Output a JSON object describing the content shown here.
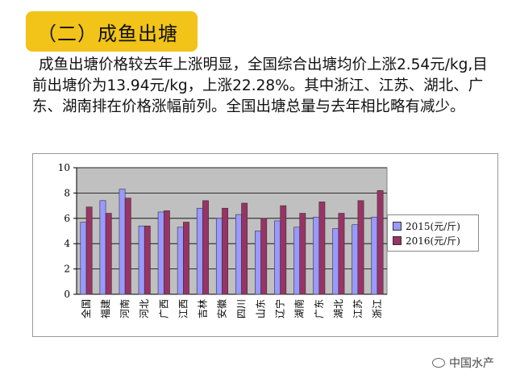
{
  "heading": "（二）成鱼出塘",
  "paragraph": "成鱼出塘价格较去年上涨明显，全国综合出塘均价上涨2.54元/kg,目前出塘价为13.94元/kg，上涨22.28%。其中浙江、江苏、湖北、广东、湖南排在价格涨幅前列。全国出塘总量与去年相比略有减少。",
  "watermark": "中国水产",
  "watermark_icon": "chat-bubble-icon",
  "chart_data": {
    "type": "bar",
    "categories": [
      "全国",
      "福建",
      "河南",
      "河北",
      "广西",
      "江西",
      "吉林",
      "安徽",
      "四川",
      "山东",
      "辽宁",
      "湖南",
      "广东",
      "湖北",
      "江苏",
      "浙江"
    ],
    "series": [
      {
        "name": "2015(元/斤)",
        "color": "#9999ff",
        "values": [
          5.7,
          7.4,
          8.3,
          5.4,
          6.5,
          5.3,
          6.8,
          6.0,
          6.3,
          5.0,
          5.8,
          5.3,
          6.1,
          5.2,
          5.5,
          6.1
        ]
      },
      {
        "name": "2016(元/斤)",
        "color": "#993366",
        "values": [
          6.9,
          6.4,
          7.6,
          5.4,
          6.6,
          5.7,
          7.4,
          6.8,
          7.2,
          6.0,
          7.0,
          6.4,
          7.3,
          6.4,
          7.4,
          8.2
        ]
      }
    ],
    "yticks": [
      0,
      2,
      4,
      6,
      8,
      10
    ],
    "ylim": [
      0,
      10
    ],
    "grid": true,
    "legend_position": "right",
    "plot_background": "#c0c0c0"
  }
}
